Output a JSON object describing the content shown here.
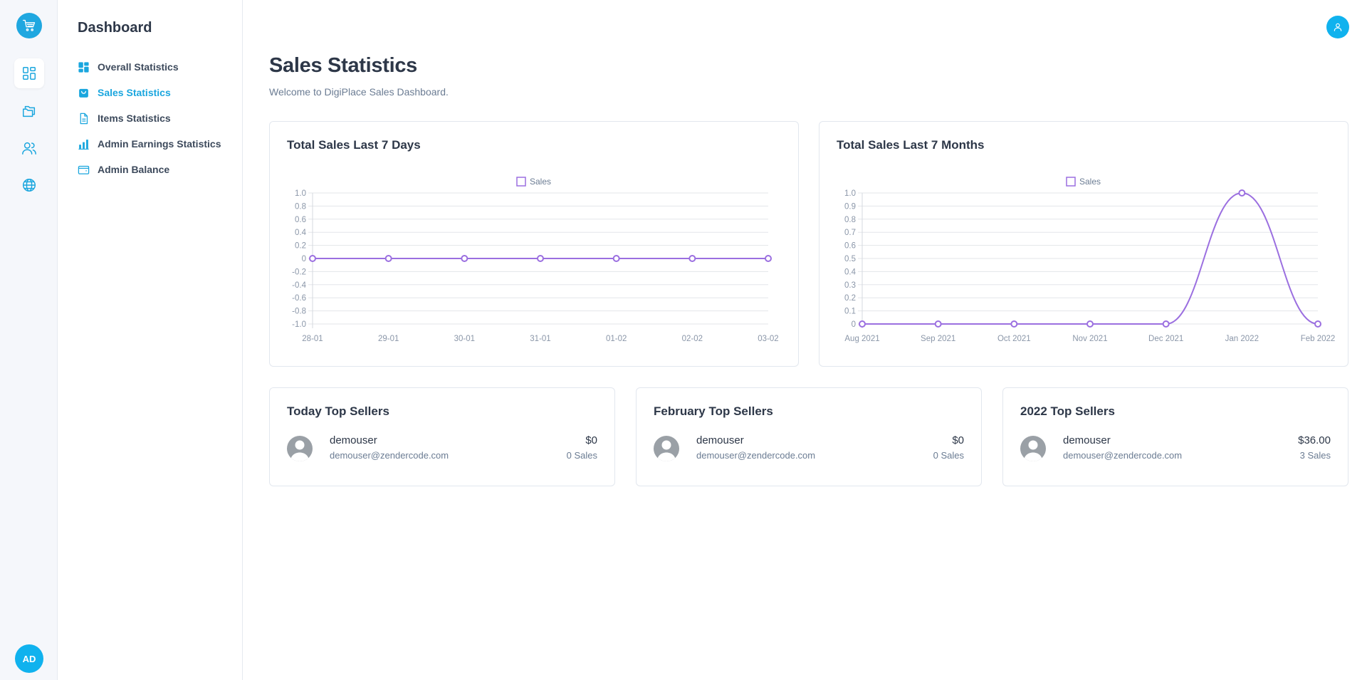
{
  "rail": {
    "avatar_initials": "AD",
    "icons": [
      "cart-icon",
      "dashboard-icon",
      "folders-icon",
      "users-icon",
      "globe-icon"
    ]
  },
  "sidemenu": {
    "title": "Dashboard",
    "items": [
      {
        "label": "Overall Statistics",
        "icon": "grid-icon",
        "active": false
      },
      {
        "label": "Sales Statistics",
        "icon": "bag-icon",
        "active": true
      },
      {
        "label": "Items Statistics",
        "icon": "document-icon",
        "active": false
      },
      {
        "label": "Admin Earnings Statistics",
        "icon": "bar-chart-icon",
        "active": false
      },
      {
        "label": "Admin Balance",
        "icon": "wallet-icon",
        "active": false
      }
    ]
  },
  "page": {
    "title": "Sales Statistics",
    "subtitle": "Welcome to DigiPlace Sales Dashboard."
  },
  "colors": {
    "accent": "#1aa6de",
    "line": "#9b6fe0",
    "avatar": "#10b2ee"
  },
  "chart_data": [
    {
      "type": "line",
      "title": "Total Sales Last 7 Days",
      "legend": "Sales",
      "legend_position": "top",
      "categories": [
        "28-01",
        "29-01",
        "30-01",
        "31-01",
        "01-02",
        "02-02",
        "03-02"
      ],
      "series": [
        {
          "name": "Sales",
          "values": [
            0,
            0,
            0,
            0,
            0,
            0,
            0
          ]
        }
      ],
      "ylim": [
        -1.0,
        1.0
      ],
      "yticks": [
        "1.0",
        "0.8",
        "0.6",
        "0.4",
        "0.2",
        "0",
        "-0.2",
        "-0.4",
        "-0.6",
        "-0.8",
        "-1.0"
      ],
      "grid": true
    },
    {
      "type": "line",
      "title": "Total Sales Last 7 Months",
      "legend": "Sales",
      "legend_position": "top",
      "categories": [
        "Aug 2021",
        "Sep 2021",
        "Oct 2021",
        "Nov 2021",
        "Dec 2021",
        "Jan 2022",
        "Feb 2022"
      ],
      "series": [
        {
          "name": "Sales",
          "values": [
            0,
            0,
            0,
            0,
            0,
            1,
            0
          ]
        }
      ],
      "ylim": [
        0,
        1.0
      ],
      "yticks": [
        "1.0",
        "0.9",
        "0.8",
        "0.7",
        "0.6",
        "0.5",
        "0.4",
        "0.3",
        "0.2",
        "0.1",
        "0"
      ],
      "grid": true
    }
  ],
  "sellers": [
    {
      "title": "Today Top Sellers",
      "name": "demouser",
      "email": "demouser@zendercode.com",
      "amount": "$0",
      "sales": "0 Sales"
    },
    {
      "title": "February Top Sellers",
      "name": "demouser",
      "email": "demouser@zendercode.com",
      "amount": "$0",
      "sales": "0 Sales"
    },
    {
      "title": "2022 Top Sellers",
      "name": "demouser",
      "email": "demouser@zendercode.com",
      "amount": "$36.00",
      "sales": "3 Sales"
    }
  ]
}
